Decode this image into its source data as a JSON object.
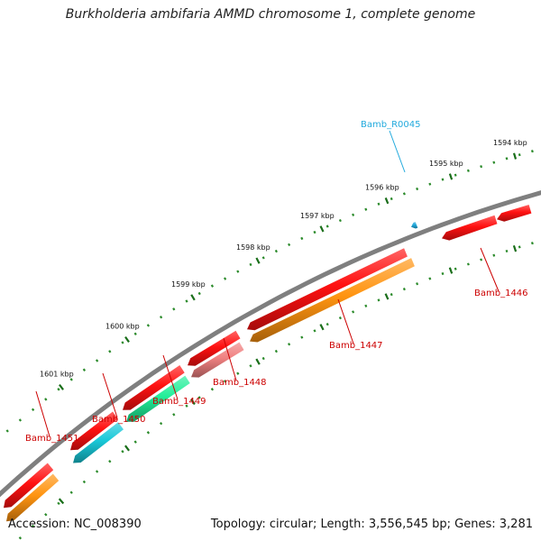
{
  "title": "Burkholderia ambifaria AMMD chromosome 1, complete genome",
  "footer": {
    "accession": "Accession: NC_008390",
    "stats": "Topology: circular; Length: 3,556,545 bp; Genes: 3,281"
  },
  "colors": {
    "backbone": "#7f7f7f",
    "ticks": "#2a8a2a",
    "major_ticks": "#1a6e1a",
    "gene_label": "#cc0000",
    "rna_label": "#22aadd"
  },
  "scale": {
    "unit": "kbp",
    "labels": [
      {
        "kbp": 1594,
        "text": "1594 kbp"
      },
      {
        "kbp": 1595,
        "text": "1595 kbp"
      },
      {
        "kbp": 1596,
        "text": "1596 kbp"
      },
      {
        "kbp": 1597,
        "text": "1597 kbp"
      },
      {
        "kbp": 1598,
        "text": "1598 kbp"
      },
      {
        "kbp": 1599,
        "text": "1599 kbp"
      },
      {
        "kbp": 1600,
        "text": "1600 kbp"
      },
      {
        "kbp": 1601,
        "text": "1601 kbp"
      }
    ]
  },
  "features": [
    {
      "id": "feat-1446a",
      "color": "#ff1111",
      "strand": "-",
      "track": "outer"
    },
    {
      "id": "feat-1446b",
      "color": "#ff1111",
      "strand": "-",
      "track": "outer"
    },
    {
      "id": "feat-1447a",
      "color": "#ff1111",
      "strand": "-",
      "track": "outer"
    },
    {
      "id": "feat-1447b",
      "color": "#ff9410",
      "strand": "-",
      "track": "inner"
    },
    {
      "id": "feat-1448a",
      "color": "#ff1111",
      "strand": "-",
      "track": "outer"
    },
    {
      "id": "feat-1448b",
      "color": "#f08080",
      "strand": "-",
      "track": "inner"
    },
    {
      "id": "feat-1449a",
      "color": "#ff1111",
      "strand": "-",
      "track": "outer"
    },
    {
      "id": "feat-1449b",
      "color": "#22ee99",
      "strand": "-",
      "track": "inner"
    },
    {
      "id": "feat-1450a",
      "color": "#ff1111",
      "strand": "-",
      "track": "outer"
    },
    {
      "id": "feat-1450b",
      "color": "#18c8d8",
      "strand": "-",
      "track": "inner"
    },
    {
      "id": "feat-1451a",
      "color": "#ff1111",
      "strand": "-",
      "track": "outer"
    },
    {
      "id": "feat-1451b",
      "color": "#ff9410",
      "strand": "-",
      "track": "inner"
    },
    {
      "id": "feat-R0045",
      "color": "#22aadd",
      "strand": "-",
      "track": "rna"
    }
  ],
  "labels": [
    {
      "id": "lbl-1446",
      "text": "Bamb_1446",
      "color": "#cc0000"
    },
    {
      "id": "lbl-1447",
      "text": "Bamb_1447",
      "color": "#cc0000"
    },
    {
      "id": "lbl-1448",
      "text": "Bamb_1448",
      "color": "#cc0000"
    },
    {
      "id": "lbl-1449",
      "text": "Bamb_1449",
      "color": "#cc0000"
    },
    {
      "id": "lbl-1450",
      "text": "Bamb_1450",
      "color": "#cc0000"
    },
    {
      "id": "lbl-1451",
      "text": "Bamb_1451",
      "color": "#cc0000"
    },
    {
      "id": "lbl-R0045",
      "text": "Bamb_R0045",
      "color": "#22aadd"
    }
  ]
}
